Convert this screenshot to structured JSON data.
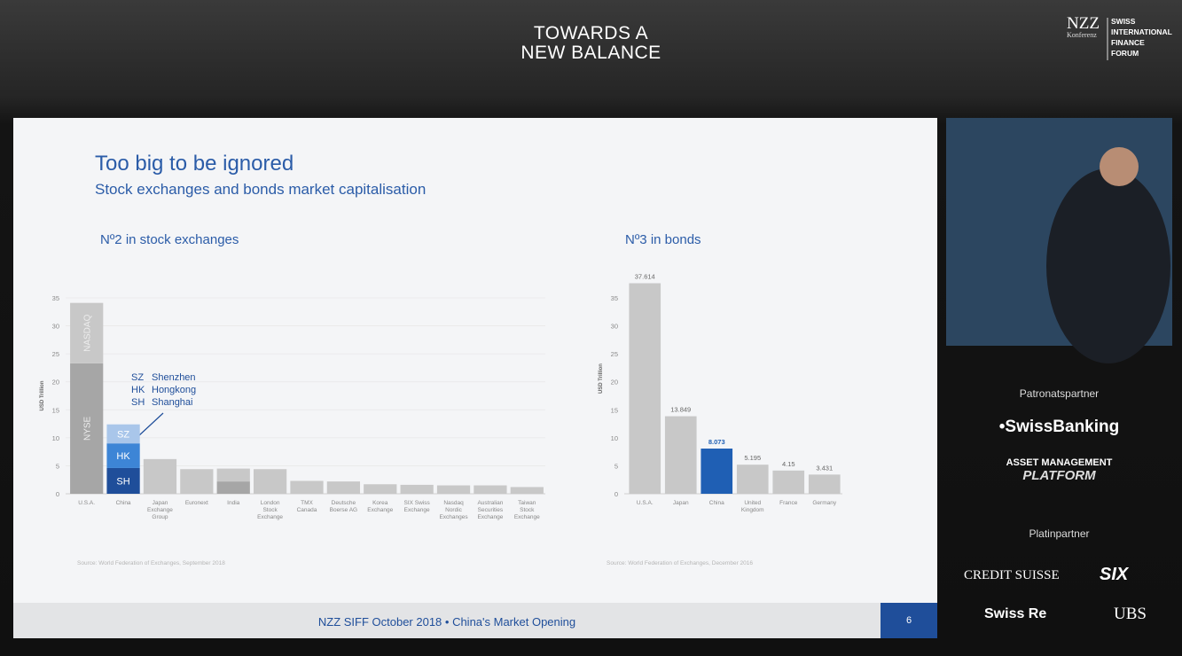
{
  "event": {
    "title_line1": "TOWARDS A",
    "title_line2": "NEW BALANCE",
    "logo": "NZZ",
    "logo_sub": "Konferenz",
    "forum": [
      "SWISS",
      "INTERNATIONAL",
      "FINANCE",
      "FORUM"
    ]
  },
  "slide": {
    "title": "Too big to be ignored",
    "subtitle": "Stock exchanges and bonds market capitalisation",
    "footer": "NZZ SIFF October 2018 • China's Market Opening",
    "page": 6
  },
  "sidebar": {
    "patron_heading": "Patronatspartner",
    "patrons": [
      "•SwissBanking",
      "ASSET MANAGEMENT",
      "PLATFORM"
    ],
    "platinum_heading": "Platinpartner",
    "platinum": [
      "CREDIT SUISSE",
      "SIX",
      "Swiss Re",
      "UBS"
    ]
  },
  "chart_data": [
    {
      "type": "bar",
      "title": "Nº2 in stock exchanges",
      "ylabel": "USD Trillion",
      "source": "Source: World Federation of Exchanges, September 2018",
      "categories": [
        "U.S.A.",
        "China",
        "Japan Exchange Group",
        "Euronext",
        "India",
        "London Stock Exchange",
        "TMX Canada",
        "Deutsche Boerse AG",
        "Korea Exchange",
        "SIX Swiss Exchange",
        "Nasdaq Nordic Exchanges",
        "Australian Securities Exchange",
        "Taiwan Stock Exchange"
      ],
      "series": [
        {
          "name": "NYSE",
          "color": "#a6a6a6",
          "values": [
            23.3,
            null,
            null,
            null,
            null,
            null,
            null,
            null,
            null,
            null,
            null,
            null,
            null
          ]
        },
        {
          "name": "NASDAQ",
          "color": "#c8c8c8",
          "values": [
            10.8,
            null,
            null,
            null,
            null,
            null,
            null,
            null,
            null,
            null,
            null,
            null,
            null
          ]
        },
        {
          "name": "SH",
          "color": "#1f4e9a",
          "values": [
            null,
            4.6,
            null,
            null,
            null,
            null,
            null,
            null,
            null,
            null,
            null,
            null,
            null
          ]
        },
        {
          "name": "HK",
          "color": "#3d85d6",
          "values": [
            null,
            4.4,
            null,
            null,
            null,
            null,
            null,
            null,
            null,
            null,
            null,
            null,
            null
          ]
        },
        {
          "name": "SZ",
          "color": "#a9c6ea",
          "values": [
            null,
            3.4,
            null,
            null,
            null,
            null,
            null,
            null,
            null,
            null,
            null,
            null,
            null
          ]
        },
        {
          "color": "#a6a6a6",
          "values": [
            null,
            null,
            null,
            null,
            2.2,
            null,
            null,
            null,
            null,
            null,
            null,
            null,
            null
          ]
        },
        {
          "color": "#c8c8c8",
          "values": [
            null,
            null,
            6.2,
            4.4,
            2.3,
            4.4,
            2.3,
            2.2,
            1.7,
            1.6,
            1.5,
            1.5,
            1.2
          ]
        }
      ],
      "annotation": [
        {
          "code": "SZ",
          "name": "Shenzhen"
        },
        {
          "code": "HK",
          "name": "Hongkong"
        },
        {
          "code": "SH",
          "name": "Shanghai"
        }
      ],
      "ylim": [
        0,
        35
      ],
      "yticks": [
        0,
        5,
        10,
        15,
        20,
        25,
        30,
        35
      ],
      "grid": true
    },
    {
      "type": "bar",
      "title": "Nº3 in bonds",
      "ylabel": "USD Trillion",
      "source": "Source: World Federation of Exchanges, December 2016",
      "categories": [
        "U.S.A.",
        "Japan",
        "China",
        "United Kingdom",
        "France",
        "Germany"
      ],
      "values": [
        37.614,
        13.849,
        8.073,
        5.195,
        4.15,
        3.431
      ],
      "color": "#c8c8c8",
      "colors": [
        "#c8c8c8",
        "#c8c8c8",
        "#1f5fb4",
        "#c8c8c8",
        "#c8c8c8",
        "#c8c8c8"
      ],
      "ylim": [
        0,
        38
      ],
      "yticks": [
        0,
        5,
        10,
        15,
        20,
        25,
        30,
        35
      ],
      "grid": false
    }
  ]
}
